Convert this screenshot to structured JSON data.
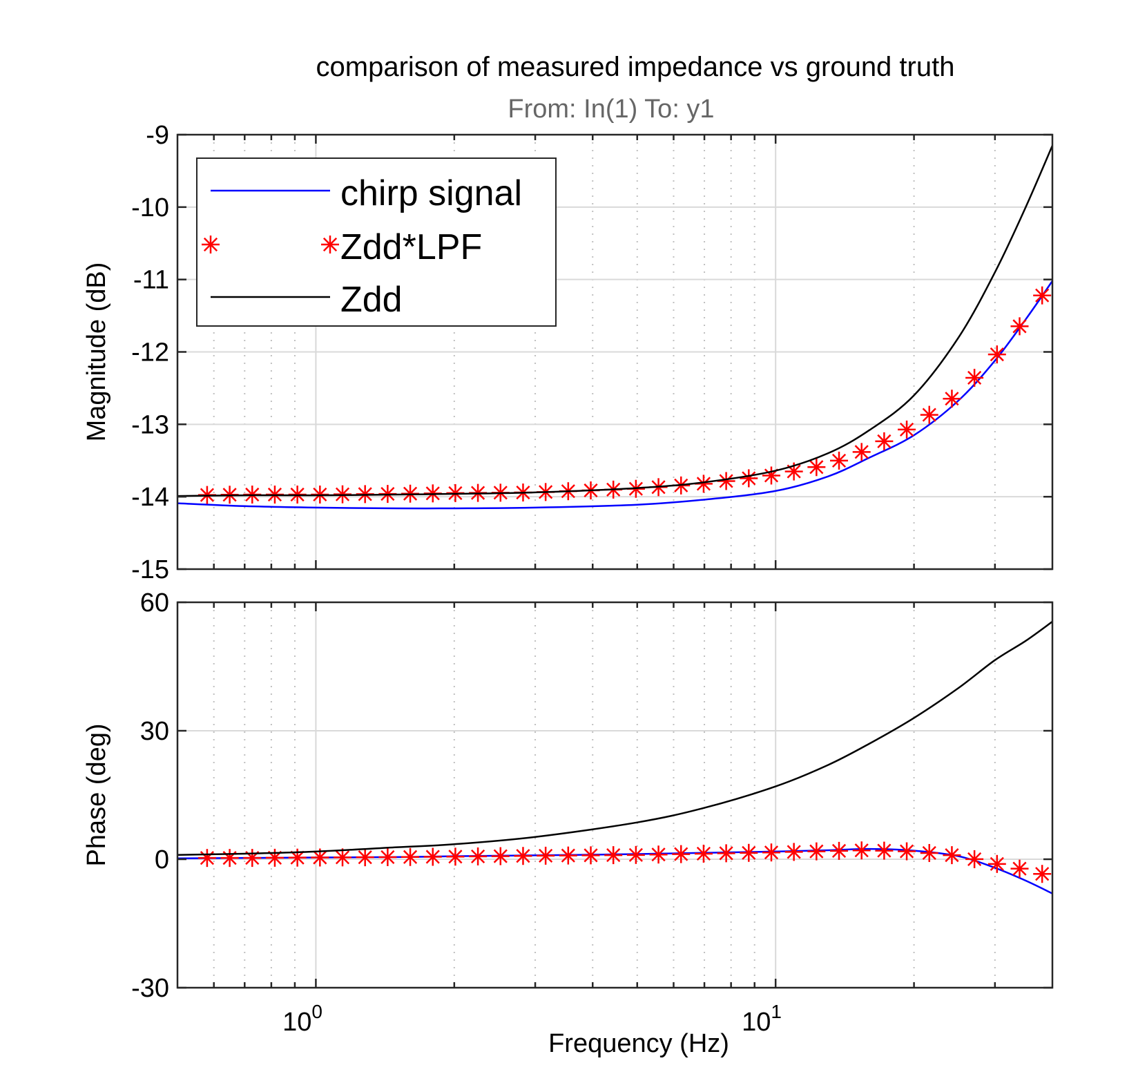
{
  "figure": {
    "title": "comparison of measured impedance vs ground truth",
    "subtitle": "From: In(1)  To: y1",
    "xlabel": "Frequency  (Hz)"
  },
  "colors": {
    "chirp": "#0000ff",
    "lpf": "#ff0000",
    "zdd": "#000000",
    "subtitle": "#666666",
    "grid": "#d9d9d9"
  },
  "legend": {
    "entries": [
      "chirp signal",
      "Zdd*LPF",
      "Zdd"
    ]
  },
  "x_ticks": [
    {
      "base": "10",
      "exp": "0",
      "value": 1
    },
    {
      "base": "10",
      "exp": "1",
      "value": 10
    }
  ],
  "chart_data": [
    {
      "type": "line",
      "name": "magnitude",
      "ylabel": "Magnitude (dB)",
      "xscale": "log",
      "xlim": [
        0.5,
        40
      ],
      "ylim": [
        -15,
        -9
      ],
      "y_ticks": [
        -15,
        -14,
        -13,
        -12,
        -11,
        -10,
        -9
      ],
      "y_tick_labels": [
        "-15",
        "-14",
        "-13",
        "-12",
        "-11",
        "-10",
        "-9"
      ],
      "grid": true,
      "legend": "top-left",
      "x": [
        0.5,
        0.7,
        1,
        1.5,
        2,
        3,
        5,
        7,
        10,
        13,
        16,
        20,
        25,
        30,
        35,
        40
      ],
      "series": [
        {
          "name": "chirp signal",
          "style": "line",
          "values": [
            -14.09,
            -14.13,
            -14.15,
            -14.16,
            -14.16,
            -14.15,
            -14.11,
            -14.04,
            -13.92,
            -13.72,
            -13.46,
            -13.15,
            -12.67,
            -12.12,
            -11.55,
            -11.02
          ]
        },
        {
          "name": "Zdd*LPF",
          "style": "marker",
          "values": [
            -13.98,
            -13.97,
            -13.97,
            -13.96,
            -13.95,
            -13.94,
            -13.89,
            -13.82,
            -13.7,
            -13.56,
            -13.34,
            -13.02,
            -12.58,
            -12.07,
            -11.54,
            -11.02
          ]
        },
        {
          "name": "Zdd",
          "style": "line",
          "values": [
            -13.99,
            -13.98,
            -13.98,
            -13.97,
            -13.96,
            -13.94,
            -13.88,
            -13.8,
            -13.64,
            -13.4,
            -13.08,
            -12.6,
            -11.8,
            -10.9,
            -10.0,
            -9.15
          ]
        }
      ]
    },
    {
      "type": "line",
      "name": "phase",
      "ylabel": "Phase (deg)",
      "xscale": "log",
      "xlim": [
        0.5,
        40
      ],
      "ylim": [
        -30,
        60
      ],
      "y_ticks": [
        -30,
        0,
        30,
        60
      ],
      "y_tick_labels": [
        "-30",
        "0",
        "30",
        "60"
      ],
      "grid": true,
      "x": [
        0.5,
        0.7,
        1,
        1.5,
        2,
        3,
        5,
        7,
        10,
        13,
        16,
        20,
        25,
        30,
        35,
        40
      ],
      "series": [
        {
          "name": "chirp signal",
          "style": "line",
          "values": [
            0.2,
            0.3,
            0.4,
            0.5,
            0.7,
            0.9,
            1.2,
            1.5,
            1.8,
            2.1,
            2.4,
            2.0,
            0.7,
            -2.0,
            -5.0,
            -8.0
          ]
        },
        {
          "name": "Zdd*LPF",
          "style": "marker",
          "values": [
            0.3,
            0.3,
            0.4,
            0.5,
            0.6,
            0.8,
            1.0,
            1.3,
            1.6,
            1.9,
            2.1,
            1.8,
            0.8,
            -1.0,
            -2.5,
            -4.0
          ]
        },
        {
          "name": "Zdd",
          "style": "line",
          "values": [
            1.0,
            1.3,
            1.8,
            2.8,
            3.5,
            5.2,
            8.6,
            12.0,
            17.0,
            22.0,
            27.0,
            33.0,
            40.0,
            46.5,
            51.0,
            55.5
          ]
        }
      ]
    }
  ]
}
